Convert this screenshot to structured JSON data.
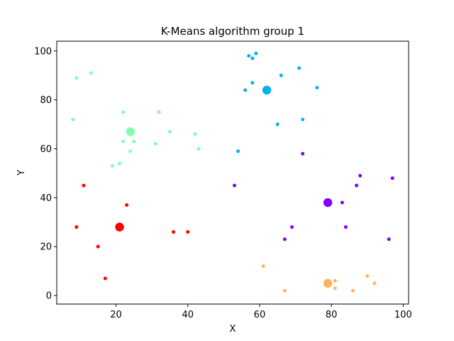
{
  "chart_data": {
    "type": "scatter",
    "title": "K-Means algorithm group 1",
    "xlabel": "X",
    "ylabel": "Y",
    "xlim": [
      3.5,
      101.5
    ],
    "ylim": [
      -3.5,
      104
    ],
    "x_ticks": [
      20,
      40,
      60,
      80,
      100
    ],
    "y_ticks": [
      0,
      20,
      40,
      60,
      80,
      100
    ],
    "grid": false,
    "legend": "none",
    "clusters": [
      {
        "color": "#8000ff",
        "centroid": [
          79,
          38
        ],
        "points": [
          [
            72,
            58
          ],
          [
            53,
            45
          ],
          [
            97,
            48
          ],
          [
            88,
            49
          ],
          [
            87,
            45
          ],
          [
            83,
            38
          ],
          [
            84,
            28
          ],
          [
            69,
            28
          ],
          [
            67,
            23
          ],
          [
            96,
            23
          ]
        ]
      },
      {
        "color": "#00b4eb",
        "centroid": [
          62,
          84
        ],
        "points": [
          [
            57,
            98
          ],
          [
            59,
            99
          ],
          [
            58,
            97
          ],
          [
            66,
            90
          ],
          [
            71,
            93
          ],
          [
            58,
            87
          ],
          [
            56,
            84
          ],
          [
            76,
            85
          ],
          [
            72,
            72
          ],
          [
            65,
            70
          ],
          [
            54,
            59
          ]
        ]
      },
      {
        "color": "#80ffb4",
        "centroid": [
          24,
          67
        ],
        "points": [
          [
            9,
            89
          ],
          [
            13,
            91
          ],
          [
            8,
            72
          ],
          [
            22,
            75
          ],
          [
            32,
            75
          ],
          [
            35,
            67
          ],
          [
            42,
            66
          ],
          [
            43,
            60
          ],
          [
            31,
            62
          ],
          [
            25,
            63
          ],
          [
            22,
            63
          ],
          [
            24,
            59
          ],
          [
            21,
            54
          ],
          [
            19,
            53
          ]
        ]
      },
      {
        "color": "#ff0000",
        "centroid": [
          21,
          28
        ],
        "points": [
          [
            11,
            45
          ],
          [
            23,
            37
          ],
          [
            9,
            28
          ],
          [
            36,
            26
          ],
          [
            40,
            26
          ],
          [
            15,
            20
          ],
          [
            17,
            7
          ]
        ]
      },
      {
        "color": "#ffb360",
        "centroid": [
          79,
          5
        ],
        "points": [
          [
            61,
            12
          ],
          [
            67,
            2
          ],
          [
            81,
            6
          ],
          [
            81,
            3
          ],
          [
            86,
            2
          ],
          [
            90,
            8
          ],
          [
            92,
            5
          ]
        ]
      }
    ]
  }
}
